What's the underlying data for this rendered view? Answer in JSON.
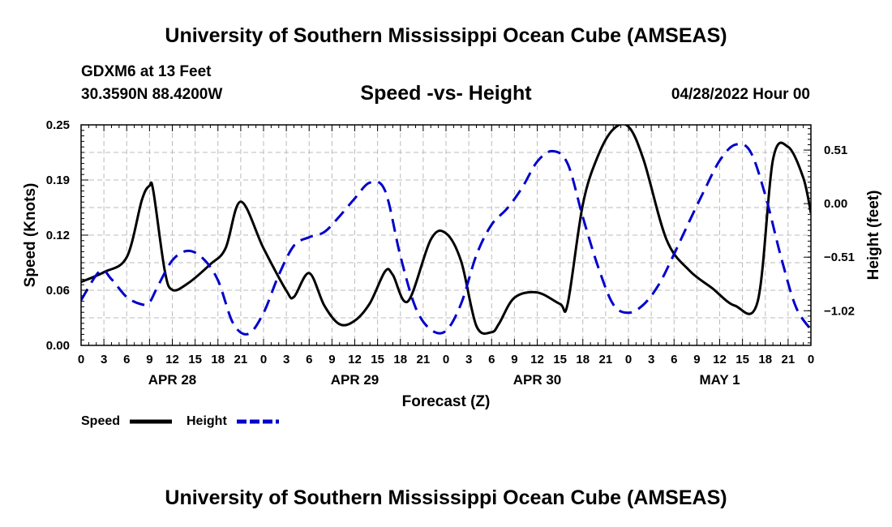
{
  "header": {
    "title": "University of Southern Mississippi Ocean Cube (AMSEAS)",
    "station": "GDXM6 at 13 Feet",
    "coords": "30.3590N  88.4200W",
    "chart_title": "Speed -vs- Height",
    "run": "04/28/2022 Hour 00"
  },
  "footer": {
    "title": "University of Southern Mississippi Ocean Cube (AMSEAS)"
  },
  "colors": {
    "speed": "#000000",
    "height": "#0000cc",
    "grid": "#bbbbbb"
  },
  "chart_data": {
    "type": "line",
    "title": "Speed -vs- Height",
    "xlabel": "Forecast (Z)",
    "ylabel": "Speed (Knots)",
    "y2label": "Height (feet)",
    "xlim": [
      0,
      96
    ],
    "ylim": [
      0,
      0.25
    ],
    "y2lim": [
      -1.35,
      0.75
    ],
    "x_ticks": [
      0,
      3,
      6,
      9,
      12,
      15,
      18,
      21,
      24,
      27,
      30,
      33,
      36,
      39,
      42,
      45,
      48,
      51,
      54,
      57,
      60,
      63,
      66,
      69,
      72,
      75,
      78,
      81,
      84,
      87,
      90,
      93,
      96
    ],
    "x_tick_labels": [
      "0",
      "3",
      "6",
      "9",
      "12",
      "15",
      "18",
      "21",
      "0",
      "3",
      "6",
      "9",
      "12",
      "15",
      "18",
      "21",
      "0",
      "3",
      "6",
      "9",
      "12",
      "15",
      "18",
      "21",
      "0",
      "3",
      "6",
      "9",
      "12",
      "15",
      "18",
      "21",
      "0"
    ],
    "day_labels": [
      {
        "label": "APR 28",
        "x": 12
      },
      {
        "label": "APR 29",
        "x": 36
      },
      {
        "label": "APR 30",
        "x": 60
      },
      {
        "label": "MAY 1",
        "x": 84
      }
    ],
    "y_ticks": [
      0.0,
      0.0625,
      0.125,
      0.1875,
      0.25
    ],
    "y_tick_labels": [
      "0.00",
      "0.06",
      "0.12",
      "0.19",
      "0.25"
    ],
    "y2_ticks": [
      -1.02,
      -0.51,
      0.0,
      0.51
    ],
    "y2_tick_labels": [
      "−1.02",
      "−0.51",
      "0.00",
      "0.51"
    ],
    "legend": [
      {
        "name": "Speed",
        "key": "speed",
        "dashed": false
      },
      {
        "name": "Height",
        "key": "height",
        "dashed": true
      }
    ],
    "series": [
      {
        "name": "Speed",
        "axis": "left",
        "x": [
          0,
          3,
          6,
          8,
          9,
          9.5,
          11,
          12,
          14,
          17,
          19,
          21,
          24,
          27,
          28,
          30,
          32,
          34,
          36,
          38,
          40,
          41,
          43,
          46,
          48,
          50,
          52,
          54,
          55,
          57,
          60,
          63,
          64,
          66,
          68,
          70,
          72,
          74,
          77,
          80,
          83,
          86,
          89,
          91,
          93,
          95,
          96
        ],
        "values": [
          0.072,
          0.083,
          0.1,
          0.165,
          0.181,
          0.175,
          0.085,
          0.063,
          0.07,
          0.092,
          0.11,
          0.163,
          0.11,
          0.062,
          0.055,
          0.082,
          0.045,
          0.024,
          0.028,
          0.048,
          0.084,
          0.08,
          0.05,
          0.12,
          0.127,
          0.095,
          0.022,
          0.015,
          0.025,
          0.054,
          0.06,
          0.047,
          0.047,
          0.16,
          0.215,
          0.245,
          0.248,
          0.21,
          0.12,
          0.085,
          0.065,
          0.045,
          0.05,
          0.21,
          0.225,
          0.19,
          0.15
        ]
      },
      {
        "name": "Height",
        "axis": "right",
        "x": [
          0,
          2.5,
          4,
          6,
          8,
          9,
          10,
          12,
          14,
          16,
          18,
          20,
          22,
          24,
          26,
          28,
          30,
          32,
          34,
          36,
          38,
          40,
          42,
          44,
          46,
          48,
          50,
          52,
          54,
          56,
          58,
          60,
          62,
          64,
          66,
          68,
          70,
          72,
          74,
          76,
          78,
          80,
          82,
          84,
          86,
          88,
          90,
          92,
          94,
          96
        ],
        "values": [
          -0.92,
          -0.64,
          -0.72,
          -0.89,
          -0.96,
          -0.94,
          -0.8,
          -0.54,
          -0.45,
          -0.52,
          -0.73,
          -1.14,
          -1.24,
          -1.04,
          -0.68,
          -0.4,
          -0.32,
          -0.27,
          -0.12,
          0.05,
          0.2,
          0.12,
          -0.5,
          -0.99,
          -1.2,
          -1.21,
          -0.95,
          -0.49,
          -0.2,
          -0.05,
          0.15,
          0.4,
          0.5,
          0.38,
          -0.13,
          -0.6,
          -0.96,
          -1.04,
          -0.96,
          -0.77,
          -0.48,
          -0.17,
          0.13,
          0.41,
          0.56,
          0.5,
          0.08,
          -0.49,
          -0.98,
          -1.2
        ]
      }
    ]
  }
}
